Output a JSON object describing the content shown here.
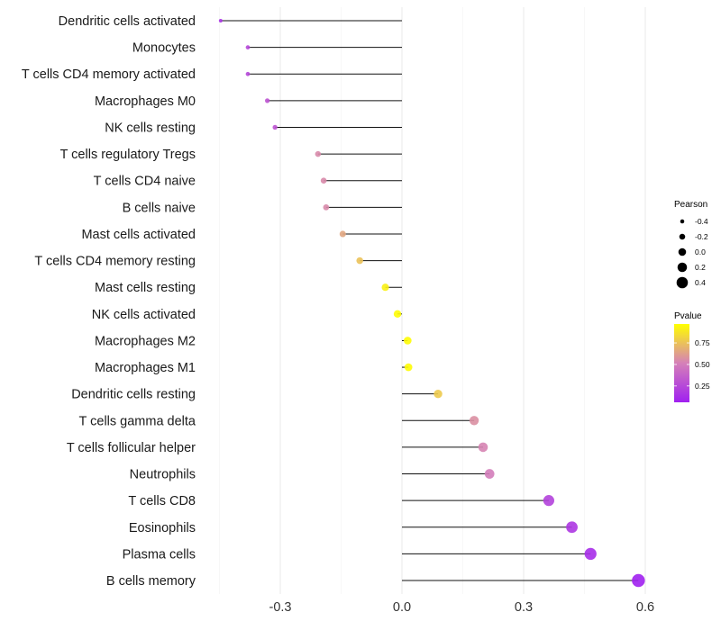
{
  "chart_data": {
    "type": "lollipop",
    "title": "",
    "xlabel": "",
    "ylabel": "",
    "xlim": [
      -0.48,
      0.62
    ],
    "x_ticks": [
      -0.3,
      0.0,
      0.3,
      0.6
    ],
    "x_tick_labels": [
      "-0.3",
      "0.0",
      "0.3",
      "0.6"
    ],
    "grid": true,
    "categories": [
      "Dendritic cells activated",
      "Monocytes",
      "T cells CD4 memory activated",
      "Macrophages M0",
      "NK cells resting",
      "T cells regulatory  Tregs ",
      "T cells CD4 naive",
      "B cells naive",
      "Mast cells activated",
      "T cells CD4 memory resting",
      "Mast cells resting",
      "NK cells activated",
      "Macrophages M2",
      "Macrophages M1",
      "Dendritic cells resting",
      "T cells gamma delta",
      "T cells follicular helper",
      "Neutrophils",
      "T cells CD8",
      "Eosinophils",
      "Plasma cells",
      "B cells memory"
    ],
    "series": [
      {
        "name": "Pearson",
        "values": [
          -0.447,
          -0.38,
          -0.38,
          -0.332,
          -0.313,
          -0.207,
          -0.193,
          -0.187,
          -0.146,
          -0.104,
          -0.041,
          -0.011,
          0.014,
          0.016,
          0.089,
          0.178,
          0.2,
          0.216,
          0.362,
          0.419,
          0.465,
          0.583
        ]
      },
      {
        "name": "Pvalue",
        "values": [
          0.15,
          0.25,
          0.25,
          0.3,
          0.3,
          0.55,
          0.55,
          0.55,
          0.65,
          0.75,
          0.92,
          0.96,
          0.96,
          0.96,
          0.78,
          0.57,
          0.53,
          0.5,
          0.22,
          0.17,
          0.12,
          0.06
        ]
      }
    ],
    "legend": {
      "position": "right",
      "size": {
        "title": "Pearson",
        "values": [
          -0.4,
          -0.2,
          0.0,
          0.2,
          0.4
        ],
        "labels": [
          "-0.4",
          "-0.2",
          "0.0",
          "0.2",
          "0.4"
        ]
      },
      "color": {
        "title": "Pvalue",
        "range": [
          0.06,
          0.97
        ],
        "ticks": [
          0.25,
          0.5,
          0.75
        ],
        "labels": [
          "0.25",
          "0.50",
          "0.75"
        ],
        "colors": [
          "#A020F0",
          "#D580B8",
          "#FFFF00"
        ]
      }
    }
  }
}
